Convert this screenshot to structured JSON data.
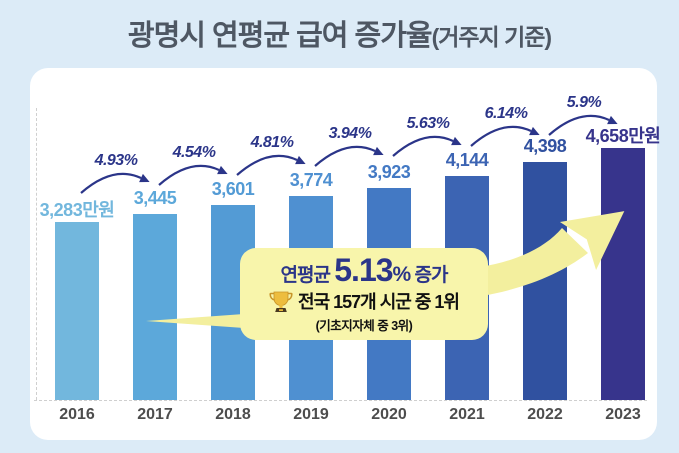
{
  "title": {
    "main": "광명시 연평균 급여 증가율",
    "suffix": "(거주지 기준)"
  },
  "chart_data": {
    "type": "bar",
    "title": "광명시 연평균 급여 증가율(거주지 기준)",
    "categories": [
      "2016",
      "2017",
      "2018",
      "2019",
      "2020",
      "2021",
      "2022",
      "2023"
    ],
    "values": [
      3283,
      3445,
      3601,
      3774,
      3923,
      4144,
      4398,
      4658
    ],
    "unit": "만원",
    "value_labels": [
      "3,283만원",
      "3,445",
      "3,601",
      "3,774",
      "3,923",
      "4,144",
      "4,398",
      "4,658만원"
    ],
    "growth_rates_pct": [
      4.93,
      4.54,
      4.81,
      3.94,
      5.63,
      6.14,
      5.9
    ],
    "growth_labels": [
      "4.93%",
      "4.54%",
      "4.81%",
      "3.94%",
      "5.63%",
      "6.14%",
      "5.9%"
    ],
    "ylim": [
      0,
      4658
    ],
    "grid": false,
    "annotation": {
      "line1": "연평균 5.13% 증가",
      "line2": "전국 157개 시군 중 1위",
      "line3": "(기초지자체 중 3위)"
    }
  },
  "callout": {
    "prefix": "연평균 ",
    "value": "5.13",
    "percent_sign": "%",
    "suffix": " 증가",
    "rank_text": "전국 157개 시군 중 1위",
    "sub_rank_text": "(기초지자체 중 3위)"
  },
  "colors": {
    "background": "#dcebf7",
    "card": "#ffffff",
    "navy_accent": "#2b3589",
    "title_text": "#4e5763",
    "year_text": "#4d4d4d",
    "callout_bg": "#f8f5ab",
    "trend_arrow": "#f3ef9e",
    "bars": [
      "#72b7dd",
      "#5ca8da",
      "#539bd5",
      "#4f90d1",
      "#4379c4",
      "#3c64b3",
      "#3051a0",
      "#37348c"
    ]
  }
}
